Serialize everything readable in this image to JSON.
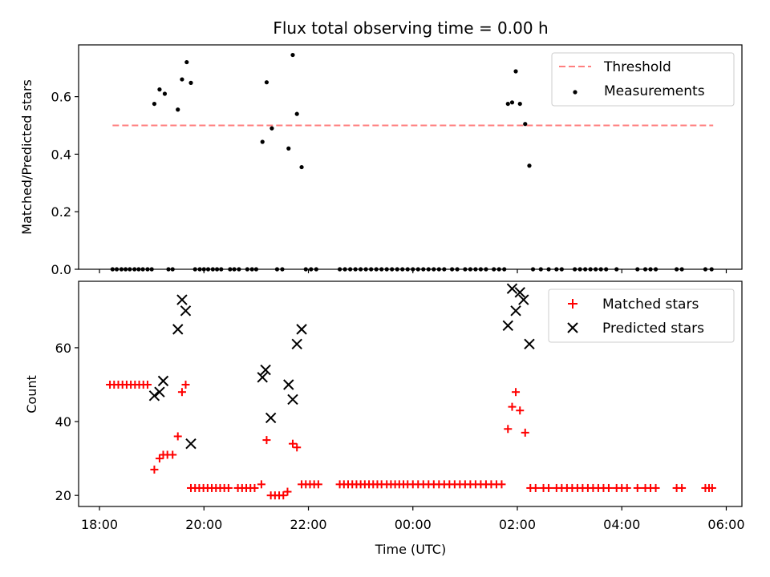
{
  "chart_data": [
    {
      "type": "scatter",
      "title": "Flux total observing time = 0.00 h",
      "xlabel": "",
      "ylabel": "Matched/Predicted stars",
      "xlim": [
        17.6,
        30.3
      ],
      "ylim": [
        0,
        0.78
      ],
      "yticks": [
        0,
        0.2,
        0.4,
        0.6
      ],
      "ytick_labels": [
        "0.0",
        "0.2",
        "0.4",
        "0.6"
      ],
      "legend": {
        "position": "top-right",
        "entries": [
          "Threshold",
          "Measurements"
        ]
      },
      "threshold": {
        "name": "Threshold",
        "value": 0.5,
        "x_range": [
          18.25,
          29.75
        ],
        "color": "#ff7f7f"
      },
      "series": [
        {
          "name": "Measurements",
          "marker": "dot",
          "color": "#000000",
          "points": [
            [
              18.25,
              0
            ],
            [
              18.33,
              0
            ],
            [
              18.42,
              0
            ],
            [
              18.5,
              0
            ],
            [
              18.58,
              0
            ],
            [
              18.67,
              0
            ],
            [
              18.75,
              0
            ],
            [
              18.83,
              0
            ],
            [
              18.92,
              0
            ],
            [
              19.0,
              0
            ],
            [
              19.05,
              0.575
            ],
            [
              19.15,
              0.625
            ],
            [
              19.25,
              0.61
            ],
            [
              19.32,
              0
            ],
            [
              19.4,
              0
            ],
            [
              19.5,
              0.555
            ],
            [
              19.58,
              0.66
            ],
            [
              19.67,
              0.72
            ],
            [
              19.75,
              0.648
            ],
            [
              19.83,
              0
            ],
            [
              19.92,
              0
            ],
            [
              20.0,
              0
            ],
            [
              20.08,
              0
            ],
            [
              20.17,
              0
            ],
            [
              20.25,
              0
            ],
            [
              20.33,
              0
            ],
            [
              20.5,
              0
            ],
            [
              20.58,
              0
            ],
            [
              20.67,
              0
            ],
            [
              20.83,
              0
            ],
            [
              20.92,
              0
            ],
            [
              21.0,
              0
            ],
            [
              21.12,
              0.443
            ],
            [
              21.2,
              0.65
            ],
            [
              21.3,
              0.49
            ],
            [
              21.4,
              0
            ],
            [
              21.5,
              0
            ],
            [
              21.62,
              0.42
            ],
            [
              21.7,
              0.745
            ],
            [
              21.78,
              0.54
            ],
            [
              21.87,
              0.355
            ],
            [
              21.95,
              0
            ],
            [
              22.05,
              0
            ],
            [
              22.15,
              0
            ],
            [
              22.6,
              0
            ],
            [
              22.7,
              0
            ],
            [
              22.8,
              0
            ],
            [
              22.9,
              0
            ],
            [
              23.0,
              0
            ],
            [
              23.1,
              0
            ],
            [
              23.2,
              0
            ],
            [
              23.3,
              0
            ],
            [
              23.4,
              0
            ],
            [
              23.5,
              0
            ],
            [
              23.6,
              0
            ],
            [
              23.7,
              0
            ],
            [
              23.8,
              0
            ],
            [
              23.9,
              0
            ],
            [
              24.0,
              0
            ],
            [
              24.1,
              0
            ],
            [
              24.2,
              0
            ],
            [
              24.3,
              0
            ],
            [
              24.4,
              0
            ],
            [
              24.5,
              0
            ],
            [
              24.6,
              0
            ],
            [
              24.75,
              0
            ],
            [
              24.85,
              0
            ],
            [
              25.0,
              0
            ],
            [
              25.1,
              0
            ],
            [
              25.2,
              0
            ],
            [
              25.3,
              0
            ],
            [
              25.4,
              0
            ],
            [
              25.55,
              0
            ],
            [
              25.65,
              0
            ],
            [
              25.75,
              0
            ],
            [
              25.82,
              0.575
            ],
            [
              25.9,
              0.58
            ],
            [
              25.97,
              0.688
            ],
            [
              26.05,
              0.575
            ],
            [
              26.15,
              0.505
            ],
            [
              26.23,
              0.36
            ],
            [
              26.3,
              0
            ],
            [
              26.45,
              0
            ],
            [
              26.6,
              0
            ],
            [
              26.75,
              0
            ],
            [
              26.85,
              0
            ],
            [
              27.1,
              0
            ],
            [
              27.2,
              0
            ],
            [
              27.3,
              0
            ],
            [
              27.4,
              0
            ],
            [
              27.5,
              0
            ],
            [
              27.6,
              0
            ],
            [
              27.7,
              0
            ],
            [
              27.9,
              0
            ],
            [
              28.3,
              0
            ],
            [
              28.45,
              0
            ],
            [
              28.55,
              0
            ],
            [
              28.65,
              0
            ],
            [
              29.05,
              0
            ],
            [
              29.15,
              0
            ],
            [
              29.6,
              0
            ],
            [
              29.72,
              0
            ]
          ]
        }
      ]
    },
    {
      "type": "scatter",
      "title": "",
      "xlabel": "Time (UTC)",
      "ylabel": "Count",
      "xlim": [
        17.6,
        30.3
      ],
      "ylim": [
        17,
        78
      ],
      "yticks": [
        20,
        40,
        60
      ],
      "ytick_labels": [
        "20",
        "40",
        "60"
      ],
      "xticks": [
        18,
        20,
        22,
        24,
        26,
        28,
        30
      ],
      "xtick_labels": [
        "18:00",
        "20:00",
        "22:00",
        "00:00",
        "02:00",
        "04:00",
        "06:00"
      ],
      "legend": {
        "position": "top-right",
        "entries": [
          "Matched stars",
          "Predicted stars"
        ]
      },
      "series": [
        {
          "name": "Matched stars",
          "marker": "plus",
          "color": "#ff0000",
          "points": [
            [
              18.2,
              50
            ],
            [
              18.28,
              50
            ],
            [
              18.36,
              50
            ],
            [
              18.44,
              50
            ],
            [
              18.52,
              50
            ],
            [
              18.6,
              50
            ],
            [
              18.68,
              50
            ],
            [
              18.76,
              50
            ],
            [
              18.84,
              50
            ],
            [
              18.92,
              50
            ],
            [
              19.05,
              27
            ],
            [
              19.15,
              30
            ],
            [
              19.22,
              31
            ],
            [
              19.3,
              31
            ],
            [
              19.4,
              31
            ],
            [
              19.5,
              36
            ],
            [
              19.58,
              48
            ],
            [
              19.65,
              50
            ],
            [
              19.75,
              22
            ],
            [
              19.83,
              22
            ],
            [
              19.91,
              22
            ],
            [
              19.99,
              22
            ],
            [
              20.07,
              22
            ],
            [
              20.15,
              22
            ],
            [
              20.23,
              22
            ],
            [
              20.31,
              22
            ],
            [
              20.39,
              22
            ],
            [
              20.47,
              22
            ],
            [
              20.65,
              22
            ],
            [
              20.73,
              22
            ],
            [
              20.81,
              22
            ],
            [
              20.89,
              22
            ],
            [
              20.97,
              22
            ],
            [
              21.1,
              23
            ],
            [
              21.2,
              35
            ],
            [
              21.28,
              20
            ],
            [
              21.36,
              20
            ],
            [
              21.44,
              20
            ],
            [
              21.52,
              20
            ],
            [
              21.6,
              21
            ],
            [
              21.7,
              34
            ],
            [
              21.78,
              33
            ],
            [
              21.87,
              23
            ],
            [
              21.95,
              23
            ],
            [
              22.03,
              23
            ],
            [
              22.11,
              23
            ],
            [
              22.19,
              23
            ],
            [
              22.6,
              23
            ],
            [
              22.68,
              23
            ],
            [
              22.76,
              23
            ],
            [
              22.84,
              23
            ],
            [
              22.92,
              23
            ],
            [
              23.0,
              23
            ],
            [
              23.08,
              23
            ],
            [
              23.16,
              23
            ],
            [
              23.24,
              23
            ],
            [
              23.32,
              23
            ],
            [
              23.4,
              23
            ],
            [
              23.5,
              23
            ],
            [
              23.58,
              23
            ],
            [
              23.66,
              23
            ],
            [
              23.74,
              23
            ],
            [
              23.82,
              23
            ],
            [
              23.9,
              23
            ],
            [
              24.0,
              23
            ],
            [
              24.1,
              23
            ],
            [
              24.2,
              23
            ],
            [
              24.3,
              23
            ],
            [
              24.4,
              23
            ],
            [
              24.5,
              23
            ],
            [
              24.6,
              23
            ],
            [
              24.7,
              23
            ],
            [
              24.8,
              23
            ],
            [
              24.9,
              23
            ],
            [
              25.0,
              23
            ],
            [
              25.1,
              23
            ],
            [
              25.2,
              23
            ],
            [
              25.3,
              23
            ],
            [
              25.4,
              23
            ],
            [
              25.5,
              23
            ],
            [
              25.6,
              23
            ],
            [
              25.7,
              23
            ],
            [
              25.82,
              38
            ],
            [
              25.9,
              44
            ],
            [
              25.97,
              48
            ],
            [
              26.05,
              43
            ],
            [
              26.15,
              37
            ],
            [
              26.25,
              22
            ],
            [
              26.35,
              22
            ],
            [
              26.5,
              22
            ],
            [
              26.6,
              22
            ],
            [
              26.75,
              22
            ],
            [
              26.85,
              22
            ],
            [
              26.95,
              22
            ],
            [
              27.05,
              22
            ],
            [
              27.15,
              22
            ],
            [
              27.25,
              22
            ],
            [
              27.35,
              22
            ],
            [
              27.45,
              22
            ],
            [
              27.55,
              22
            ],
            [
              27.65,
              22
            ],
            [
              27.75,
              22
            ],
            [
              27.9,
              22
            ],
            [
              28.0,
              22
            ],
            [
              28.1,
              22
            ],
            [
              28.3,
              22
            ],
            [
              28.45,
              22
            ],
            [
              28.55,
              22
            ],
            [
              28.65,
              22
            ],
            [
              29.05,
              22
            ],
            [
              29.15,
              22
            ],
            [
              29.6,
              22
            ],
            [
              29.67,
              22
            ],
            [
              29.73,
              22
            ]
          ]
        },
        {
          "name": "Predicted stars",
          "marker": "x",
          "color": "#000000",
          "points": [
            [
              19.05,
              47
            ],
            [
              19.15,
              48
            ],
            [
              19.22,
              51
            ],
            [
              19.5,
              65
            ],
            [
              19.58,
              73
            ],
            [
              19.65,
              70
            ],
            [
              19.75,
              34
            ],
            [
              21.12,
              52
            ],
            [
              21.18,
              54
            ],
            [
              21.28,
              41
            ],
            [
              21.62,
              50
            ],
            [
              21.7,
              46
            ],
            [
              21.78,
              61
            ],
            [
              21.87,
              65
            ],
            [
              25.82,
              66
            ],
            [
              25.9,
              76
            ],
            [
              25.97,
              70
            ],
            [
              26.05,
              75
            ],
            [
              26.12,
              73
            ],
            [
              26.23,
              61
            ]
          ]
        }
      ]
    }
  ]
}
